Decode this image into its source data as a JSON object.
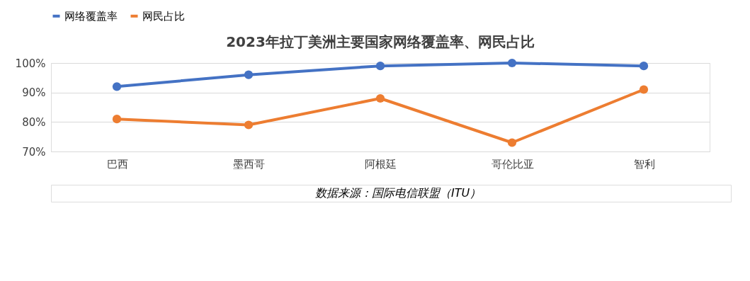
{
  "chart_data": {
    "type": "line",
    "title": "2023年拉丁美洲主要国家网络覆盖率、网民占比",
    "categories": [
      "巴西",
      "墨西哥",
      "阿根廷",
      "哥伦比亚",
      "智利"
    ],
    "series": [
      {
        "name": "网络覆盖率",
        "color": "#4472c4",
        "values": [
          92,
          96,
          99,
          100,
          99
        ]
      },
      {
        "name": "网民占比",
        "color": "#ed7d31",
        "values": [
          81,
          79,
          88,
          73,
          91
        ]
      }
    ],
    "ylim": [
      70,
      100
    ],
    "yticks": [
      {
        "value": 70,
        "label": "70%"
      },
      {
        "value": 80,
        "label": "80%"
      },
      {
        "value": 90,
        "label": "90%"
      },
      {
        "value": 100,
        "label": "100%"
      }
    ],
    "grid": "y",
    "legend": "top",
    "marker": "circle",
    "line_style": "solid",
    "annotations": [
      "数据来源：国际电信联盟（ITU）"
    ]
  }
}
